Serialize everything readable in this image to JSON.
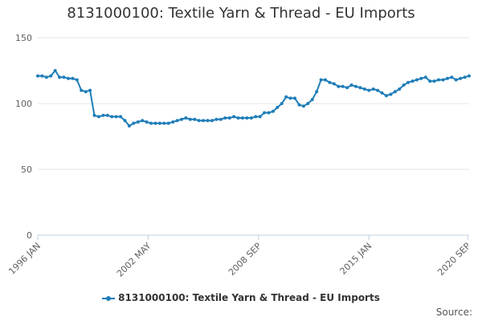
{
  "chart_data": {
    "type": "line",
    "title": "8131000100: Textile Yarn & Thread - EU Imports",
    "xlabel": "",
    "ylabel": "",
    "ylim": [
      0,
      150
    ],
    "yticks": [
      "0",
      "50",
      "100",
      "150"
    ],
    "xlim": [
      "1996-01",
      "2020-10"
    ],
    "xticks": [
      {
        "label": "1996 JAN",
        "date": "1996-01"
      },
      {
        "label": "2002 MAY",
        "date": "2002-05"
      },
      {
        "label": "2008 SEP",
        "date": "2008-09"
      },
      {
        "label": "2015 JAN",
        "date": "2015-01"
      },
      {
        "label": "2020 SEP",
        "date": "2020-09"
      }
    ],
    "grid": true,
    "legend": "bottom-center",
    "series": [
      {
        "name": "8131000100: Textile Yarn & Thread - EU Imports",
        "color": "#1f7db8",
        "x": [
          "1996-01",
          "1996-04",
          "1996-07",
          "1996-10",
          "1997-01",
          "1997-04",
          "1997-07",
          "1997-10",
          "1998-01",
          "1998-04",
          "1998-07",
          "1998-10",
          "1999-01",
          "1999-04",
          "1999-07",
          "1999-10",
          "2000-01",
          "2000-04",
          "2000-07",
          "2000-10",
          "2001-01",
          "2001-04",
          "2001-07",
          "2001-10",
          "2002-01",
          "2002-04",
          "2002-07",
          "2002-10",
          "2003-01",
          "2003-04",
          "2003-07",
          "2003-10",
          "2004-01",
          "2004-04",
          "2004-07",
          "2004-10",
          "2005-01",
          "2005-04",
          "2005-07",
          "2005-10",
          "2006-01",
          "2006-04",
          "2006-07",
          "2006-10",
          "2007-01",
          "2007-04",
          "2007-07",
          "2007-10",
          "2008-01",
          "2008-04",
          "2008-07",
          "2008-10",
          "2009-01",
          "2009-04",
          "2009-07",
          "2009-10",
          "2010-01",
          "2010-04",
          "2010-07",
          "2010-10",
          "2011-01",
          "2011-04",
          "2011-07",
          "2011-10",
          "2012-01",
          "2012-04",
          "2012-07",
          "2012-10",
          "2013-01",
          "2013-04",
          "2013-07",
          "2013-10",
          "2014-01",
          "2014-04",
          "2014-07",
          "2014-10",
          "2015-01",
          "2015-04",
          "2015-07",
          "2015-10",
          "2016-01",
          "2016-04",
          "2016-07",
          "2016-10",
          "2017-01",
          "2017-04",
          "2017-07",
          "2017-10",
          "2018-01",
          "2018-04",
          "2018-07",
          "2018-10",
          "2019-01",
          "2019-04",
          "2019-07",
          "2019-10",
          "2020-01",
          "2020-04",
          "2020-07",
          "2020-10"
        ],
        "values": [
          121,
          121,
          120,
          121,
          125,
          120,
          120,
          119,
          119,
          118,
          110,
          109,
          110,
          91,
          90,
          91,
          91,
          90,
          90,
          90,
          87,
          83,
          85,
          86,
          87,
          86,
          85,
          85,
          85,
          85,
          85,
          86,
          87,
          88,
          89,
          88,
          88,
          87,
          87,
          87,
          87,
          88,
          88,
          89,
          89,
          90,
          89,
          89,
          89,
          89,
          90,
          90,
          93,
          93,
          94,
          97,
          100,
          105,
          104,
          104,
          99,
          98,
          100,
          103,
          109,
          118,
          118,
          116,
          115,
          113,
          113,
          112,
          114,
          113,
          112,
          111,
          110,
          111,
          110,
          108,
          106,
          107,
          109,
          111,
          114,
          116,
          117,
          118,
          119,
          120,
          117,
          117,
          118,
          118,
          119,
          120,
          118,
          119,
          120,
          121
        ]
      }
    ],
    "source_label": "Source:"
  }
}
